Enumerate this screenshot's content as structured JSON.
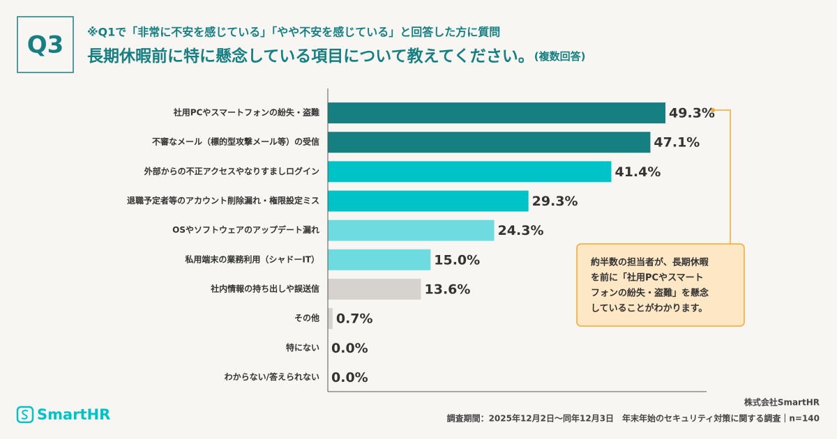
{
  "header": {
    "badge": "Q3",
    "pretitle": "※Q1で「非常に不安を感じている」「やや不安を感じている」と回答した方に質問",
    "title": "長期休暇前に特に懸念している項目について教えてください。",
    "title_note": "(複数回答)"
  },
  "chart_data": {
    "type": "bar",
    "orientation": "horizontal",
    "categories": [
      "社用PCやスマートフォンの紛失・盗難",
      "不審なメール（標的型攻撃メール等）の受信",
      "外部からの不正アクセスやなりすましログイン",
      "退職予定者等のアカウント削除漏れ・権限設定ミス",
      "OSやソフトウェアのアップデート漏れ",
      "私用端末の業務利用（シャドーIT）",
      "社内情報の持ち出しや誤送信",
      "その他",
      "特にない",
      "わからない/答えられない"
    ],
    "values": [
      49.3,
      47.1,
      41.4,
      29.3,
      24.3,
      15.0,
      13.6,
      0.7,
      0.0,
      0.0
    ],
    "value_labels": [
      "49.3%",
      "47.1%",
      "41.4%",
      "29.3%",
      "24.3%",
      "15.0%",
      "13.6%",
      "0.7%",
      "0.0%",
      "0.0%"
    ],
    "colors": [
      "#167f82",
      "#167f82",
      "#00c3c8",
      "#00c3c8",
      "#6ddbe0",
      "#6ddbe0",
      "#d6d3cf",
      "#d6d3cf",
      "#d6d3cf",
      "#d6d3cf"
    ],
    "xlim": [
      0,
      55
    ]
  },
  "callout": {
    "lines": [
      "約半数の担当者が、長期休暇",
      "を前に「社用PCやスマート",
      "フォンの紛失・盗難」を懸念",
      "していることがわかります。"
    ]
  },
  "footer": {
    "logo": "SmartHR",
    "company": "株式会社SmartHR",
    "note": "調査期間：2025年12月2日〜同年12月3日　年末年始のセキュリティ対策に関する調査｜n=140"
  }
}
